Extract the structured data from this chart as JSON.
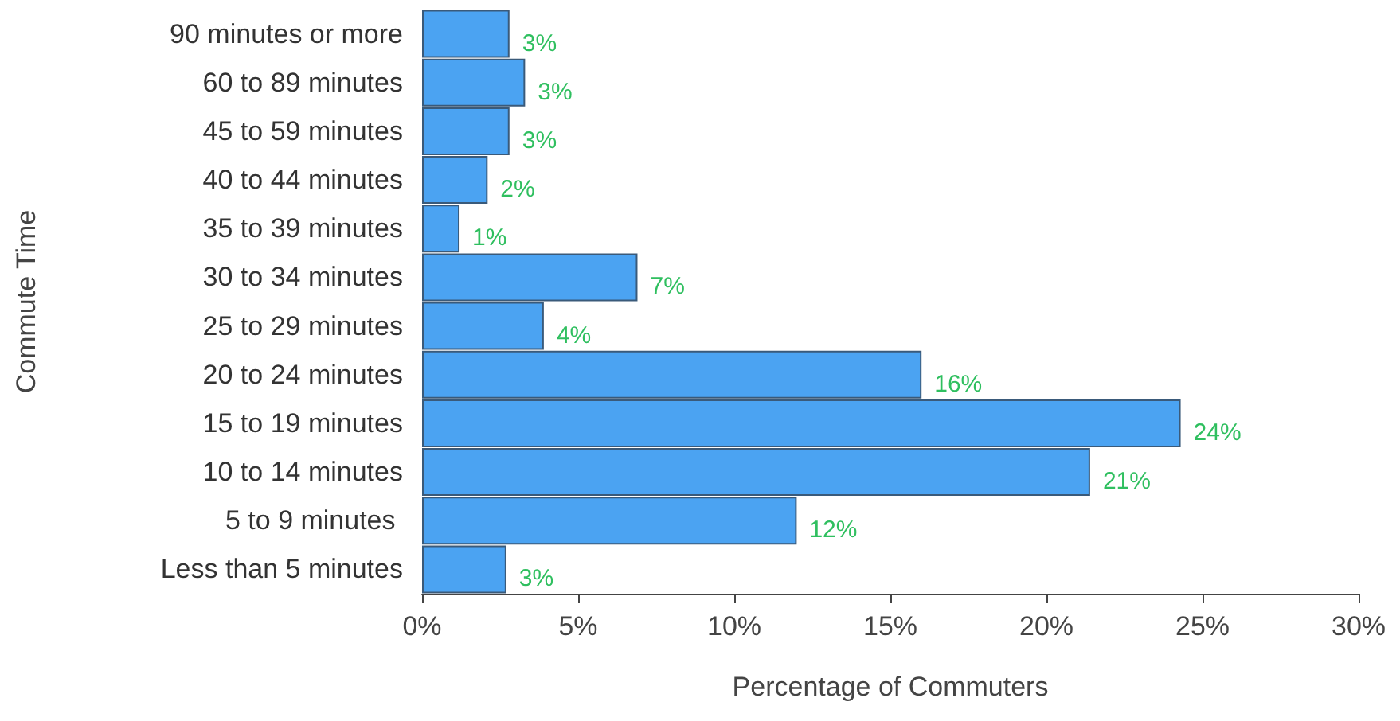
{
  "chart_data": {
    "type": "bar",
    "orientation": "horizontal",
    "xlabel": "Percentage of Commuters",
    "ylabel": "Commute Time",
    "categories": [
      "90 minutes or more",
      "60 to 89 minutes",
      "45 to 59 minutes",
      "40 to 44 minutes",
      "35 to 39 minutes",
      "30 to 34 minutes",
      "25 to 29 minutes",
      "20 to 24 minutes",
      "15 to 19 minutes",
      "10 to 14 minutes",
      "5 to 9 minutes ",
      "Less than 5 minutes"
    ],
    "values": [
      2.8,
      3.3,
      2.8,
      2.1,
      1.2,
      6.9,
      3.9,
      16.0,
      24.3,
      21.4,
      12.0,
      2.7
    ],
    "value_labels": [
      "3%",
      "3%",
      "3%",
      "2%",
      "1%",
      "7%",
      "4%",
      "16%",
      "24%",
      "21%",
      "12%",
      "3%"
    ],
    "color": "#4ba3f2",
    "xlim": [
      0,
      30
    ],
    "xticks": [
      {
        "value": 0,
        "label": "0%"
      },
      {
        "value": 5,
        "label": "5%"
      },
      {
        "value": 10,
        "label": "10%"
      },
      {
        "value": 15,
        "label": "15%"
      },
      {
        "value": 20,
        "label": "20%"
      },
      {
        "value": 25,
        "label": "25%"
      },
      {
        "value": 30,
        "label": "30%"
      }
    ]
  }
}
